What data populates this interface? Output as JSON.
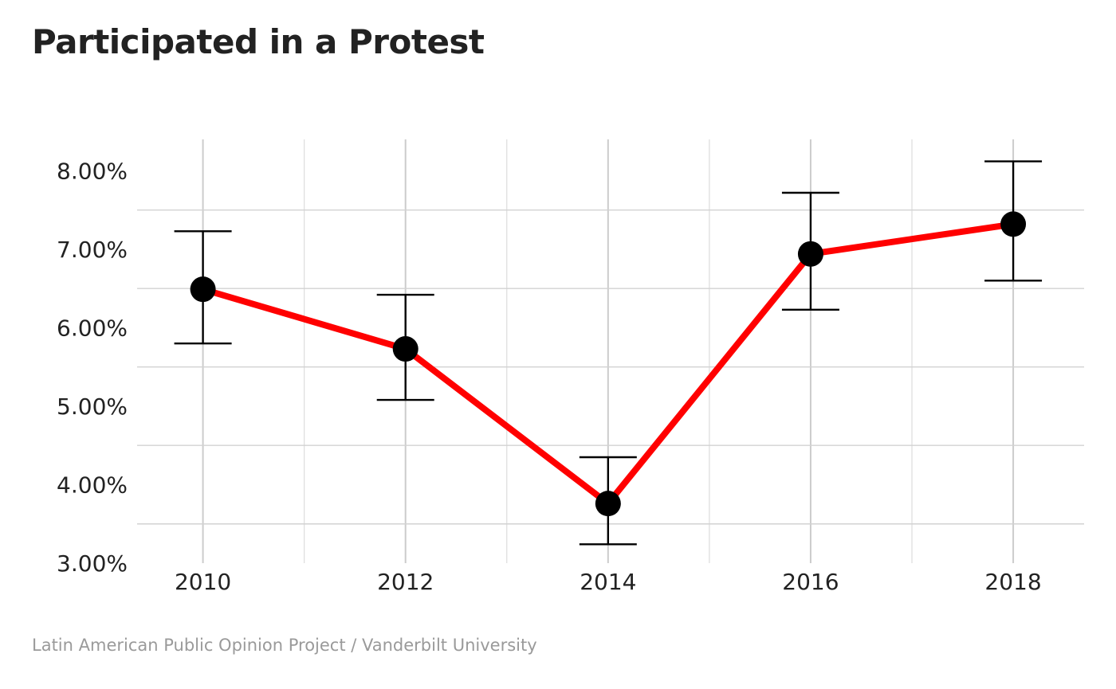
{
  "chart_data": {
    "type": "line",
    "title": "Participated in a Protest",
    "caption": "Latin American Public Opinion Project / Vanderbilt University",
    "xlabel": "",
    "ylabel": "",
    "x": [
      2010,
      2012,
      2014,
      2016,
      2018
    ],
    "x_tick_labels": [
      "2010",
      "2012",
      "2014",
      "2016",
      "2018"
    ],
    "y_tick_values": [
      3,
      4,
      5,
      6,
      7,
      8
    ],
    "y_tick_labels": [
      "3.00%",
      "4.00%",
      "5.00%",
      "6.00%",
      "7.00%",
      "8.00%"
    ],
    "xlim": [
      2009.35,
      2018.7
    ],
    "ylim": [
      3.0,
      8.4
    ],
    "series": [
      {
        "values": [
          6.49,
          5.73,
          3.76,
          6.94,
          7.32
        ],
        "ci_lower": [
          5.8,
          5.08,
          3.24,
          6.23,
          6.6
        ],
        "ci_upper": [
          7.23,
          6.42,
          4.35,
          7.72,
          8.12
        ],
        "line_color": "#ff0000",
        "point_color": "#000000"
      }
    ],
    "grid": true,
    "legend": "none"
  }
}
